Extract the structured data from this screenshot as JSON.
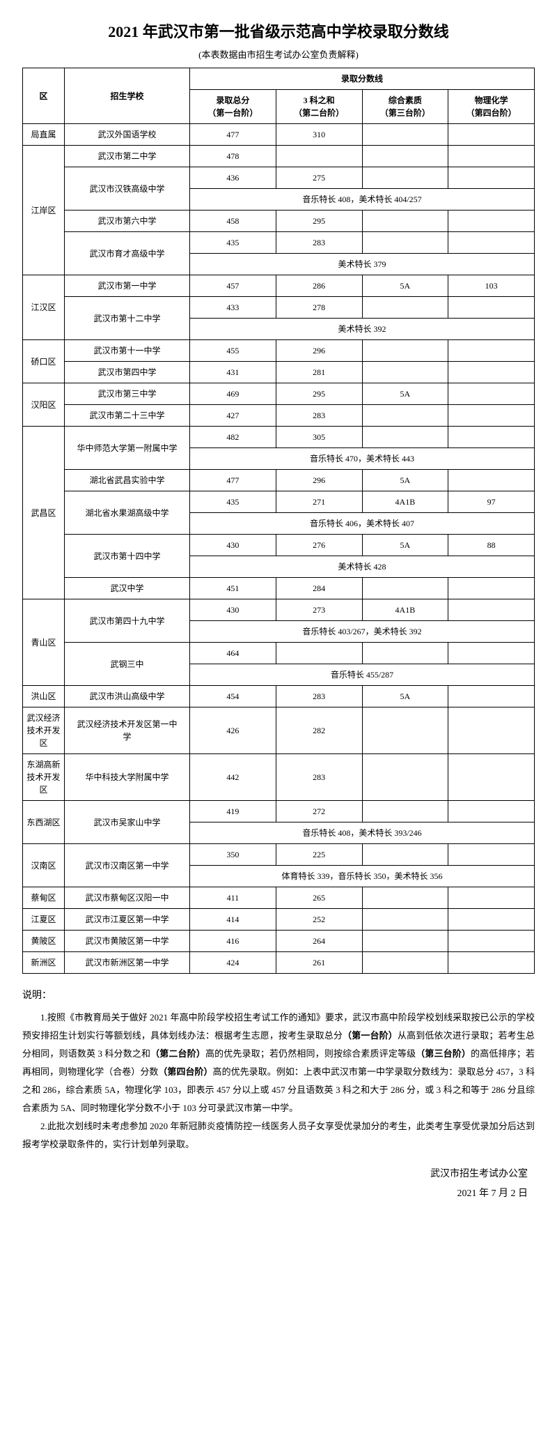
{
  "title": "2021 年武汉市第一批省级示范高中学校录取分数线",
  "subtitle": "(本表数据由市招生考试办公室负责解释)",
  "header": {
    "district": "区",
    "school": "招生学校",
    "score_group": "录取分数线",
    "c1": "录取总分\n（第一台阶）",
    "c2": "3 科之和\n（第二台阶）",
    "c3": "综合素质\n（第三台阶）",
    "c4": "物理化学\n（第四台阶）"
  },
  "rows": [
    {
      "district": "局直属",
      "drs": 1,
      "school": "武汉外国语学校",
      "srs": 1,
      "c1": "477",
      "c2": "310",
      "c3": "",
      "c4": ""
    },
    {
      "district": "江岸区",
      "drs": 6,
      "school": "武汉市第二中学",
      "srs": 1,
      "c1": "478",
      "c2": "",
      "c3": "",
      "c4": ""
    },
    {
      "school": "武汉市汉铁高级中学",
      "srs": 2,
      "c1": "436",
      "c2": "275",
      "c3": "",
      "c4": ""
    },
    {
      "merge": "音乐特长 408，美术特长 404/257"
    },
    {
      "school": "武汉市第六中学",
      "srs": 1,
      "c1": "458",
      "c2": "295",
      "c3": "",
      "c4": ""
    },
    {
      "school": "武汉市育才高级中学",
      "srs": 2,
      "c1": "435",
      "c2": "283",
      "c3": "",
      "c4": ""
    },
    {
      "merge": "美术特长 379"
    },
    {
      "district": "江汉区",
      "drs": 3,
      "school": "武汉市第一中学",
      "srs": 1,
      "c1": "457",
      "c2": "286",
      "c3": "5A",
      "c4": "103"
    },
    {
      "school": "武汉市第十二中学",
      "srs": 2,
      "c1": "433",
      "c2": "278",
      "c3": "",
      "c4": ""
    },
    {
      "merge": "美术特长 392"
    },
    {
      "district": "硚口区",
      "drs": 2,
      "school": "武汉市第十一中学",
      "srs": 1,
      "c1": "455",
      "c2": "296",
      "c3": "",
      "c4": ""
    },
    {
      "school": "武汉市第四中学",
      "srs": 1,
      "c1": "431",
      "c2": "281",
      "c3": "",
      "c4": ""
    },
    {
      "district": "汉阳区",
      "drs": 2,
      "school": "武汉市第三中学",
      "srs": 1,
      "c1": "469",
      "c2": "295",
      "c3": "5A",
      "c4": ""
    },
    {
      "school": "武汉市第二十三中学",
      "srs": 1,
      "c1": "427",
      "c2": "283",
      "c3": "",
      "c4": ""
    },
    {
      "district": "武昌区",
      "drs": 8,
      "school": "华中师范大学第一附属中学",
      "srs": 2,
      "c1": "482",
      "c2": "305",
      "c3": "",
      "c4": ""
    },
    {
      "merge": "音乐特长 470，美术特长 443"
    },
    {
      "school": "湖北省武昌实验中学",
      "srs": 1,
      "c1": "477",
      "c2": "296",
      "c3": "5A",
      "c4": ""
    },
    {
      "school": "湖北省水果湖高级中学",
      "srs": 2,
      "c1": "435",
      "c2": "271",
      "c3": "4A1B",
      "c4": "97"
    },
    {
      "merge": "音乐特长 406，美术特长 407"
    },
    {
      "school": "武汉市第十四中学",
      "srs": 2,
      "c1": "430",
      "c2": "276",
      "c3": "5A",
      "c4": "88"
    },
    {
      "merge": "美术特长 428"
    },
    {
      "school": "武汉中学",
      "srs": 1,
      "c1": "451",
      "c2": "284",
      "c3": "",
      "c4": ""
    },
    {
      "district": "青山区",
      "drs": 4,
      "school": "武汉市第四十九中学",
      "srs": 2,
      "c1": "430",
      "c2": "273",
      "c3": "4A1B",
      "c4": ""
    },
    {
      "merge": "音乐特长 403/267，美术特长 392"
    },
    {
      "school": "武钢三中",
      "srs": 2,
      "c1": "464",
      "c2": "",
      "c3": "",
      "c4": ""
    },
    {
      "merge": "音乐特长 455/287"
    },
    {
      "district": "洪山区",
      "drs": 1,
      "school": "武汉市洪山高级中学",
      "srs": 1,
      "c1": "454",
      "c2": "283",
      "c3": "5A",
      "c4": ""
    },
    {
      "district": "武汉经济\n技术开发\n区",
      "drs": 1,
      "school": "武汉经济技术开发区第一中\n学",
      "srs": 1,
      "c1": "426",
      "c2": "282",
      "c3": "",
      "c4": ""
    },
    {
      "district": "东湖高新\n技术开发\n区",
      "drs": 1,
      "school": "华中科技大学附属中学",
      "srs": 1,
      "c1": "442",
      "c2": "283",
      "c3": "",
      "c4": ""
    },
    {
      "district": "东西湖区",
      "drs": 2,
      "school": "武汉市吴家山中学",
      "srs": 2,
      "c1": "419",
      "c2": "272",
      "c3": "",
      "c4": ""
    },
    {
      "merge": "音乐特长 408，美术特长 393/246"
    },
    {
      "district": "汉南区",
      "drs": 2,
      "school": "武汉市汉南区第一中学",
      "srs": 2,
      "c1": "350",
      "c2": "225",
      "c3": "",
      "c4": ""
    },
    {
      "merge": "体育特长 339，音乐特长 350，美术特长 356"
    },
    {
      "district": "蔡甸区",
      "drs": 1,
      "school": "武汉市蔡甸区汉阳一中",
      "srs": 1,
      "c1": "411",
      "c2": "265",
      "c3": "",
      "c4": ""
    },
    {
      "district": "江夏区",
      "drs": 1,
      "school": "武汉市江夏区第一中学",
      "srs": 1,
      "c1": "414",
      "c2": "252",
      "c3": "",
      "c4": ""
    },
    {
      "district": "黄陂区",
      "drs": 1,
      "school": "武汉市黄陂区第一中学",
      "srs": 1,
      "c1": "416",
      "c2": "264",
      "c3": "",
      "c4": ""
    },
    {
      "district": "新洲区",
      "drs": 1,
      "school": "武汉市新洲区第一中学",
      "srs": 1,
      "c1": "424",
      "c2": "261",
      "c3": "",
      "c4": ""
    }
  ],
  "note_label": "说明：",
  "note1": {
    "pre": "1.按照《市教育局关于做好 2021 年高中阶段学校招生考试工作的通知》要求，武汉市高中阶段学校划线采取按已公示的学校预安排招生计划实行等额划线，具体划线办法：根据考生志愿，按考生录取总分",
    "b1": "（第一台阶）",
    "mid1": "从高到低依次进行录取；若考生总分相同，则语数英 3 科分数之和",
    "b2": "（第二台阶）",
    "mid2": "高的优先录取；若仍然相同，则按综合素质评定等级",
    "b3": "（第三台阶）",
    "mid3": "的高低排序；若再相同，则物理化学（合卷）分数",
    "b4": "（第四台阶）",
    "post": "高的优先录取。例如：上表中武汉市第一中学录取分数线为：录取总分 457，3 科之和 286，综合素质 5A，物理化学 103，即表示 457 分以上或 457 分且语数英 3 科之和大于 286 分，或 3 科之和等于 286 分且综合素质为 5A、同时物理化学分数不小于 103 分可录武汉市第一中学。"
  },
  "note2": "2.此批次划线时未考虑参加 2020 年新冠肺炎疫情防控一线医务人员子女享受优录加分的考生，此类考生享受优录加分后达到报考学校录取条件的，实行计划单列录取。",
  "signature_office": "武汉市招生考试办公室",
  "signature_date": "2021 年 7 月 2 日"
}
